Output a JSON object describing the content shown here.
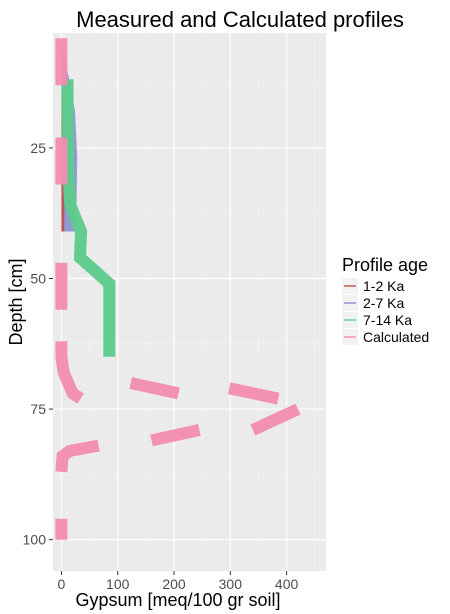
{
  "chart_data": {
    "type": "line",
    "title": "Measured and Calculated profiles",
    "xlabel": "Gypsum [meq/100 gr soil]",
    "ylabel": "Depth [cm]",
    "xlim": [
      -15,
      470
    ],
    "ylim": [
      106,
      3
    ],
    "y_reversed": true,
    "x_ticks": [
      0,
      100,
      200,
      300,
      400
    ],
    "x_minor_ticks": [
      50,
      150,
      250,
      350,
      450
    ],
    "y_ticks": [
      25,
      50,
      75,
      100
    ],
    "y_minor_ticks": [
      12.5,
      37.5,
      62.5,
      87.5
    ],
    "grid": true,
    "legend": {
      "title": "Profile age",
      "position": "right",
      "entries": [
        {
          "label": "1-2 Ka",
          "color": "#c0504d"
        },
        {
          "label": "2-7 Ka",
          "color": "#8a8fd4"
        },
        {
          "label": "7-14 Ka",
          "color": "#5ccb8c"
        },
        {
          "label": "Calculated",
          "color": "#f28cb1"
        }
      ]
    },
    "series": [
      {
        "name": "2-7 Ka",
        "color": "#8a8fd4",
        "style": "area",
        "points": [
          [
            0,
            5
          ],
          [
            14,
            12
          ],
          [
            24,
            18
          ],
          [
            28,
            27
          ],
          [
            27,
            34
          ],
          [
            26,
            38
          ],
          [
            26,
            41
          ],
          [
            0,
            41
          ]
        ]
      },
      {
        "name": "1-2 Ka",
        "color": "#c0504d",
        "style": "area",
        "points": [
          [
            0,
            14
          ],
          [
            6,
            20
          ],
          [
            6,
            30
          ],
          [
            5,
            38
          ],
          [
            5,
            41
          ],
          [
            0,
            41
          ]
        ]
      },
      {
        "name": "7-14 Ka",
        "color": "#5ccb8c",
        "style": "line",
        "points": [
          [
            0,
            13
          ],
          [
            11,
            13
          ],
          [
            11,
            18
          ],
          [
            12,
            30
          ],
          [
            16,
            36
          ],
          [
            35,
            41
          ],
          [
            33,
            46
          ],
          [
            85,
            51
          ],
          [
            85,
            65
          ]
        ]
      },
      {
        "name": "Calculated",
        "color": "#f28cb1",
        "style": "segments",
        "segments": [
          [
            [
              0,
              4
            ],
            [
              0,
              13
            ]
          ],
          [
            [
              0,
              23
            ],
            [
              0,
              32
            ]
          ],
          [
            [
              0,
              47
            ],
            [
              0,
              56
            ]
          ],
          [
            [
              0,
              62
            ],
            [
              0,
              65
            ],
            [
              4,
              68
            ],
            [
              20,
              72
            ],
            [
              34,
              73
            ]
          ],
          [
            [
              123,
              70
            ],
            [
              208,
              72
            ]
          ],
          [
            [
              298,
              71
            ],
            [
              385,
              73
            ]
          ],
          [
            [
              340,
              79
            ],
            [
              420,
              75
            ]
          ],
          [
            [
              160,
              81
            ],
            [
              245,
              79
            ]
          ],
          [
            [
              0,
              87
            ],
            [
              2,
              84
            ],
            [
              15,
              83
            ],
            [
              66,
              82
            ]
          ],
          [
            [
              0,
              96
            ],
            [
              0,
              100
            ]
          ]
        ]
      }
    ]
  }
}
